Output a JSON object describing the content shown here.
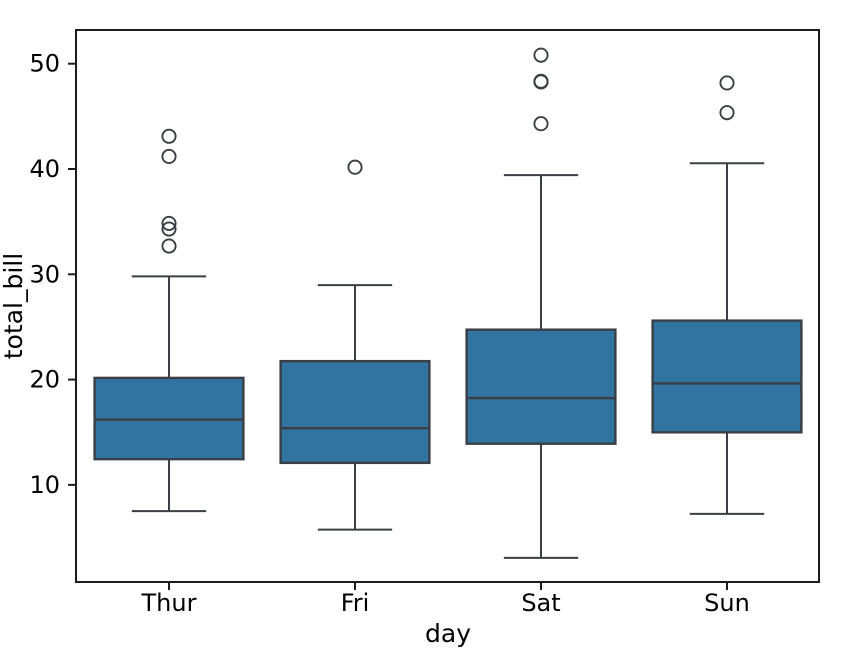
{
  "chart_data": {
    "type": "boxplot",
    "title": "",
    "xlabel": "day",
    "ylabel": "total_bill",
    "categories": [
      "Thur",
      "Fri",
      "Sat",
      "Sun"
    ],
    "yticks": [
      10,
      20,
      30,
      40,
      50
    ],
    "ylim": [
      0.68,
      53.2
    ],
    "grid": false,
    "legend": "none",
    "boxes": [
      {
        "category": "Thur",
        "whisker_low": 7.51,
        "q1": 12.44,
        "median": 16.2,
        "q3": 20.16,
        "whisker_high": 29.8,
        "outliers": [
          32.68,
          34.3,
          34.83,
          41.19,
          43.11
        ]
      },
      {
        "category": "Fri",
        "whisker_low": 5.75,
        "q1": 12.09,
        "median": 15.38,
        "q3": 21.75,
        "whisker_high": 28.97,
        "outliers": [
          40.17
        ]
      },
      {
        "category": "Sat",
        "whisker_low": 3.07,
        "q1": 13.91,
        "median": 18.24,
        "q3": 24.74,
        "whisker_high": 39.42,
        "outliers": [
          44.3,
          48.27,
          48.33,
          50.81
        ]
      },
      {
        "category": "Sun",
        "whisker_low": 7.25,
        "q1": 14.99,
        "median": 19.63,
        "q3": 25.6,
        "whisker_high": 40.55,
        "outliers": [
          45.35,
          48.17
        ]
      }
    ],
    "style": {
      "box_fill": "#3274a1",
      "line_color": "#3a3f45",
      "spine_color": "#1c1c1c",
      "text_color": "#000000",
      "background": "#ffffff",
      "box_width_frac": 0.8
    }
  }
}
